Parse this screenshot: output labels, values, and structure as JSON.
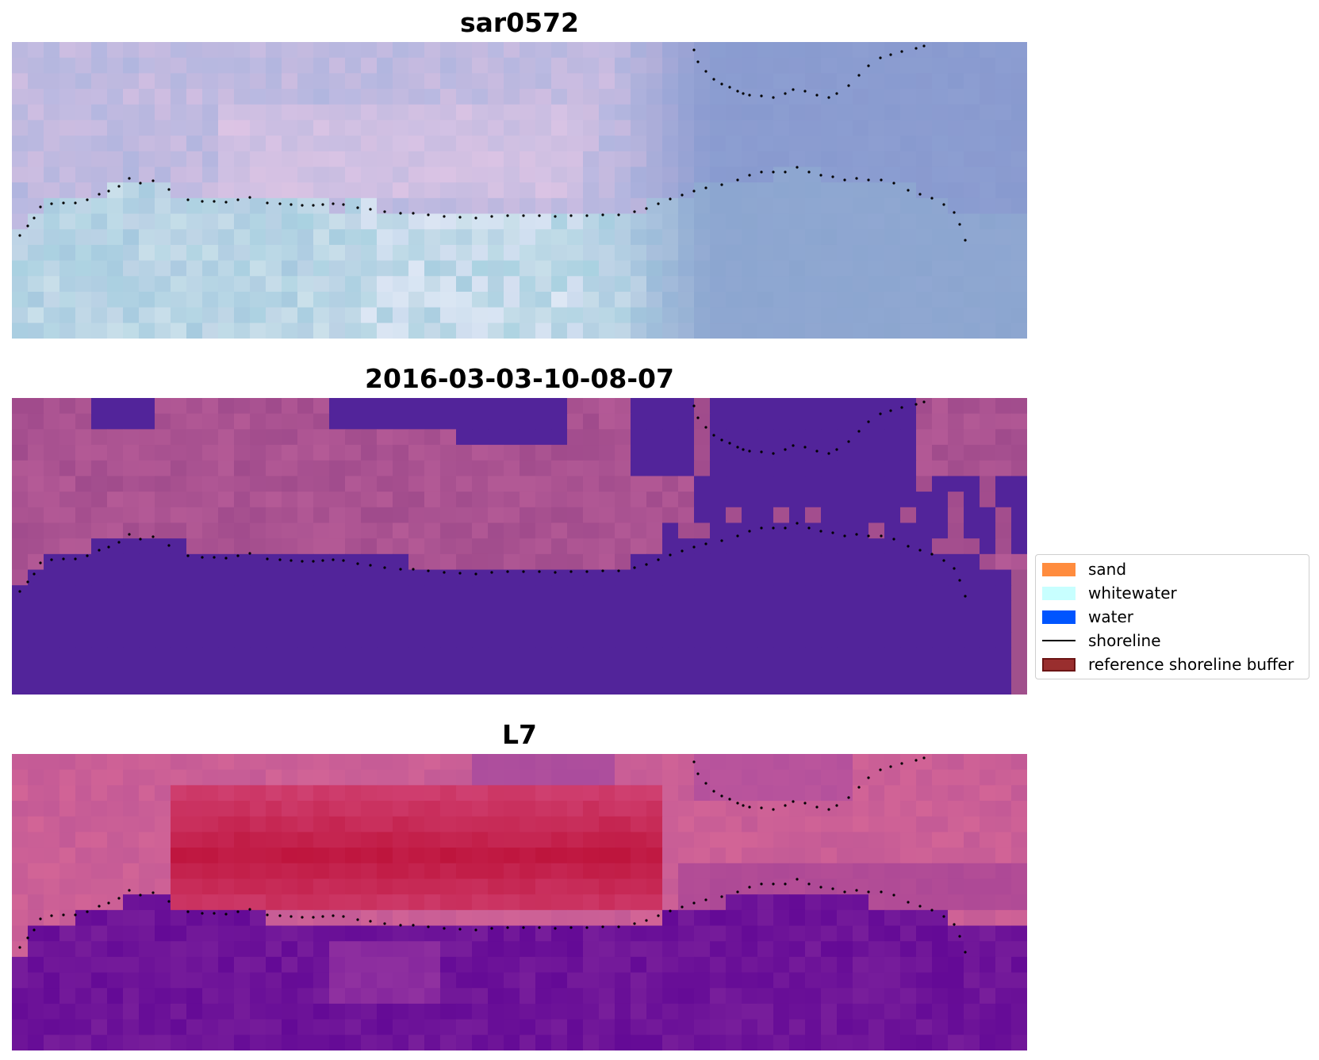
{
  "panels": [
    {
      "title": "sar0572",
      "style": "rgb"
    },
    {
      "title": "2016-03-03-10-08-07",
      "style": "classified"
    },
    {
      "title": "L7",
      "style": "index"
    }
  ],
  "legend": {
    "items": [
      {
        "label": "sand",
        "color": "#ff8c3e",
        "kind": "patch"
      },
      {
        "label": "whitewater",
        "color": "#c8ffff",
        "kind": "patch"
      },
      {
        "label": "water",
        "color": "#0055ff",
        "kind": "patch"
      },
      {
        "label": "shoreline",
        "color": "#000000",
        "kind": "line"
      },
      {
        "label": "reference shoreline buffer",
        "color": "#992e2e",
        "kind": "patch"
      }
    ]
  },
  "colors": {
    "classified_land": "#a24f8e",
    "classified_water": "#52249a",
    "index_high": "#c0113a",
    "index_low": "#670e96"
  }
}
